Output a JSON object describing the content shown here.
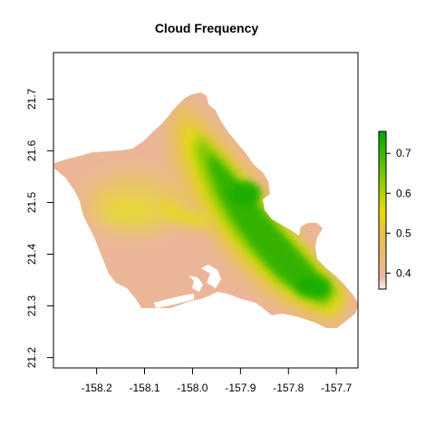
{
  "title": "Cloud Frequency",
  "map": {
    "x_ticks": [
      {
        "value": -158.2,
        "label": "-158.2"
      },
      {
        "value": -158.1,
        "label": "-158.1"
      },
      {
        "value": -158.0,
        "label": "-158.0"
      },
      {
        "value": -157.9,
        "label": "-157.9"
      },
      {
        "value": -157.8,
        "label": "-157.8"
      },
      {
        "value": -157.7,
        "label": "-157.7"
      }
    ],
    "y_ticks": [
      {
        "value": 21.2,
        "label": "21.2"
      },
      {
        "value": 21.3,
        "label": "21.3"
      },
      {
        "value": 21.4,
        "label": "21.4"
      },
      {
        "value": 21.5,
        "label": "21.5"
      },
      {
        "value": 21.6,
        "label": "21.6"
      },
      {
        "value": 21.7,
        "label": "21.7"
      }
    ],
    "xlim": [
      -158.29,
      -157.655
    ],
    "ylim": [
      21.18,
      21.79
    ]
  },
  "legend": {
    "ticks": [
      {
        "value": 0.4,
        "label": "0.4"
      },
      {
        "value": 0.5,
        "label": "0.5"
      },
      {
        "value": 0.6,
        "label": "0.6"
      },
      {
        "value": 0.7,
        "label": "0.7"
      }
    ],
    "range": [
      0.36,
      0.755
    ],
    "colors": [
      "#f2f2f2",
      "#ecb89e",
      "#e8c04a",
      "#e6dc00",
      "#7cc800",
      "#00a600"
    ]
  }
}
